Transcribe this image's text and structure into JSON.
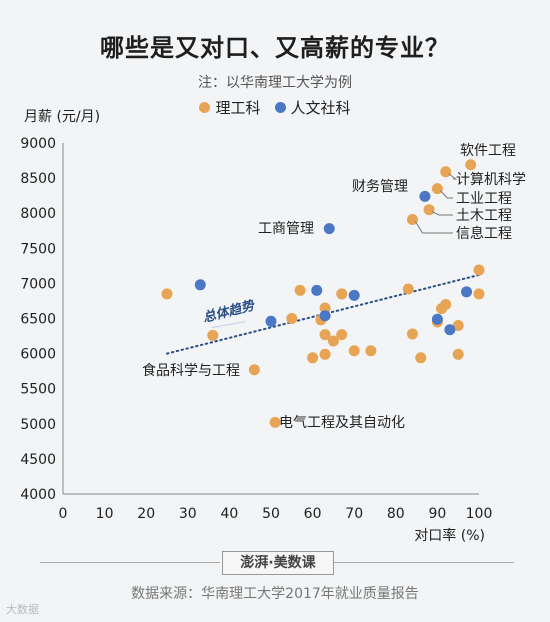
{
  "header": {
    "title": "哪些是又对口、又高薪的专业？",
    "subtitle": "注：以华南理工大学为例"
  },
  "footer": {
    "brand": "澎湃·美数课",
    "source": "数据来源：华南理工大学2017年就业质量报告",
    "watermark": "大数据"
  },
  "colors": {
    "science": "#e8a455",
    "humanities": "#4a78c4",
    "trend": "#2c4f86"
  },
  "chart_data": {
    "type": "scatter",
    "ylabel": "月薪 (元/月)",
    "xlabel": "对口率 (%)",
    "xlim": [
      0,
      100
    ],
    "ylim": [
      4000,
      9000
    ],
    "xticks": [
      0,
      10,
      20,
      30,
      40,
      50,
      60,
      70,
      80,
      90,
      100
    ],
    "yticks": [
      4000,
      4500,
      5000,
      5500,
      6000,
      6500,
      7000,
      7500,
      8000,
      8500,
      9000
    ],
    "grid": false,
    "legend": [
      {
        "name": "理工科",
        "color_key": "science"
      },
      {
        "name": "人文社科",
        "color_key": "humanities"
      }
    ],
    "trend_label": "总体趋势",
    "trend": {
      "x": [
        25,
        100
      ],
      "y": [
        6000,
        7120
      ]
    },
    "series": [
      {
        "name": "理工科",
        "points": [
          {
            "x": 25,
            "y": 6850
          },
          {
            "x": 36,
            "y": 6260
          },
          {
            "x": 46,
            "y": 5770,
            "label": "食品科学与工程"
          },
          {
            "x": 51,
            "y": 5020,
            "label": "电气工程及其自动化"
          },
          {
            "x": 55,
            "y": 6500
          },
          {
            "x": 57,
            "y": 6900
          },
          {
            "x": 60,
            "y": 5940
          },
          {
            "x": 62,
            "y": 6480
          },
          {
            "x": 63,
            "y": 6650
          },
          {
            "x": 63,
            "y": 6270
          },
          {
            "x": 63,
            "y": 5990
          },
          {
            "x": 65,
            "y": 6180
          },
          {
            "x": 67,
            "y": 6270
          },
          {
            "x": 67,
            "y": 6850
          },
          {
            "x": 70,
            "y": 6040
          },
          {
            "x": 74,
            "y": 6040
          },
          {
            "x": 83,
            "y": 6920
          },
          {
            "x": 84,
            "y": 6280
          },
          {
            "x": 86,
            "y": 5940
          },
          {
            "x": 90,
            "y": 6450
          },
          {
            "x": 91,
            "y": 6640
          },
          {
            "x": 92,
            "y": 6700
          },
          {
            "x": 95,
            "y": 6400
          },
          {
            "x": 95,
            "y": 5990
          },
          {
            "x": 100,
            "y": 7190
          },
          {
            "x": 100,
            "y": 6850
          },
          {
            "x": 84,
            "y": 7910,
            "label": "信息工程"
          },
          {
            "x": 88,
            "y": 8050,
            "label": "土木工程"
          },
          {
            "x": 90,
            "y": 8350,
            "label": "工业工程"
          },
          {
            "x": 92,
            "y": 8590,
            "label": "计算机科学"
          },
          {
            "x": 98,
            "y": 8690,
            "label": "软件工程"
          }
        ]
      },
      {
        "name": "人文社科",
        "points": [
          {
            "x": 33,
            "y": 6980
          },
          {
            "x": 50,
            "y": 6460
          },
          {
            "x": 61,
            "y": 6900
          },
          {
            "x": 63,
            "y": 6540
          },
          {
            "x": 70,
            "y": 6830
          },
          {
            "x": 87,
            "y": 8240,
            "label": "财务管理"
          },
          {
            "x": 64,
            "y": 7780,
            "label": "工商管理"
          },
          {
            "x": 90,
            "y": 6490
          },
          {
            "x": 93,
            "y": 6340
          },
          {
            "x": 97,
            "y": 6880
          }
        ]
      }
    ]
  }
}
